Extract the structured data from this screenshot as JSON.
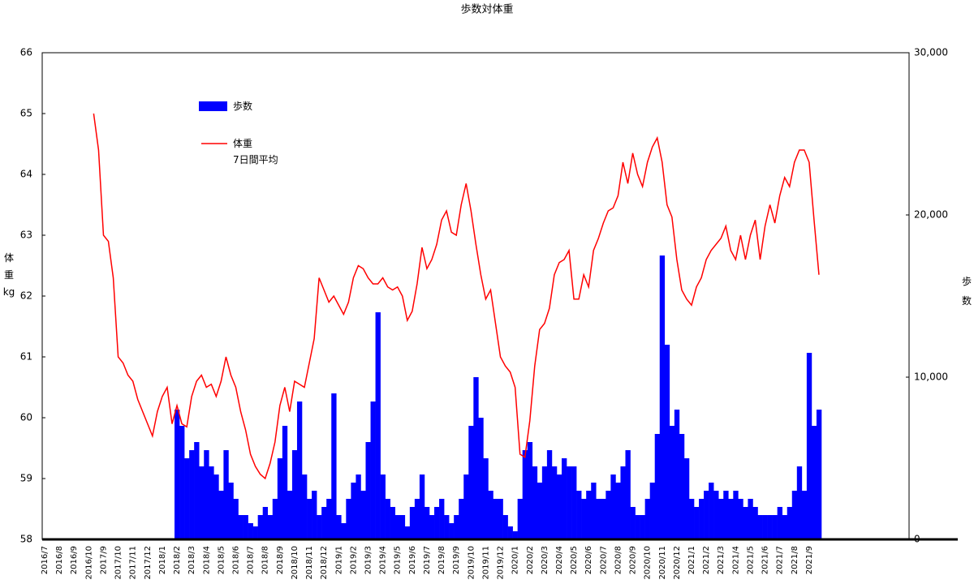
{
  "chart_data": {
    "type": "bar_line",
    "title": "歩数対体重",
    "y_label": "体\n重\nkg",
    "y2_label": "歩\n数",
    "categories": [
      "2016/7",
      null,
      null,
      "2016/8",
      null,
      null,
      "2016/9",
      null,
      null,
      "2016/10",
      null,
      null,
      "2017/9",
      null,
      null,
      "2017/10",
      null,
      null,
      "2017/11",
      null,
      null,
      "2017/12",
      null,
      null,
      "2018/1",
      null,
      null,
      "2018/2",
      null,
      null,
      "2018/3",
      null,
      null,
      "2018/4",
      null,
      null,
      "2018/5",
      null,
      null,
      "2018/6",
      null,
      null,
      "2018/7",
      null,
      null,
      "2018/8",
      null,
      null,
      "2018/9",
      null,
      null,
      "2018/10",
      null,
      null,
      "2018/11",
      null,
      null,
      "2018/12",
      null,
      null,
      "2019/1",
      null,
      null,
      "2019/2",
      null,
      null,
      "2019/3",
      null,
      null,
      "2019/4",
      null,
      null,
      "2019/5",
      null,
      null,
      "2019/6",
      null,
      null,
      "2019/7",
      null,
      null,
      "2019/8",
      null,
      null,
      "2019/9",
      null,
      null,
      "2019/10",
      null,
      null,
      "2019/11",
      null,
      null,
      "2019/12",
      null,
      null,
      "2020/1",
      null,
      null,
      "2020/2",
      null,
      null,
      "2020/3",
      null,
      null,
      "2020/4",
      null,
      null,
      "2020/5",
      null,
      null,
      "2020/6",
      null,
      null,
      "2020/7",
      null,
      null,
      "2020/8",
      null,
      null,
      "2020/9",
      null,
      null,
      "2020/10",
      null,
      null,
      "2020/11",
      null,
      null,
      "2020/12",
      null,
      null,
      "2021/1",
      null,
      null,
      "2021/2",
      null,
      null,
      "2021/3",
      null,
      null,
      "2021/4",
      null,
      null,
      "2021/5",
      null,
      null,
      "2021/6",
      null,
      null,
      "2021/7",
      null,
      null,
      "2021/8",
      null,
      null,
      "2021/9",
      null,
      null
    ],
    "series": [
      {
        "name": "歩数",
        "kind": "bar",
        "axis": "y2",
        "color": "#0000ff",
        "values": [
          null,
          null,
          null,
          null,
          null,
          null,
          null,
          null,
          null,
          null,
          null,
          null,
          null,
          null,
          null,
          null,
          null,
          null,
          null,
          null,
          null,
          null,
          null,
          null,
          null,
          null,
          null,
          8000,
          7000,
          5000,
          5500,
          6000,
          4500,
          5500,
          4500,
          4000,
          3000,
          5500,
          3500,
          2500,
          1500,
          1500,
          1000,
          800,
          1500,
          2000,
          1500,
          2500,
          5000,
          7000,
          3000,
          5500,
          8500,
          4000,
          2500,
          3000,
          1500,
          2000,
          2500,
          9000,
          1500,
          1000,
          2500,
          3500,
          4000,
          3000,
          6000,
          8500,
          14000,
          4000,
          2500,
          2000,
          1500,
          1500,
          800,
          2000,
          2500,
          4000,
          2000,
          1500,
          2000,
          2500,
          1500,
          1000,
          1500,
          2500,
          4000,
          7000,
          10000,
          7500,
          5000,
          3000,
          2500,
          2500,
          1500,
          800,
          500,
          2500,
          5500,
          6000,
          4500,
          3500,
          4500,
          5500,
          4500,
          4000,
          5000,
          4500,
          4500,
          3000,
          2500,
          3000,
          3500,
          2500,
          2500,
          3000,
          4000,
          3500,
          4500,
          5500,
          2000,
          1500,
          1500,
          2500,
          3500,
          6500,
          17500,
          12000,
          7000,
          8000,
          6500,
          5000,
          2500,
          2000,
          2500,
          3000,
          3500,
          3000,
          2500,
          3000,
          2500,
          3000,
          2500,
          2000,
          2500,
          2000,
          1500,
          1500,
          1500,
          1500,
          2000,
          1500,
          2000,
          3000,
          4500,
          3000,
          11500,
          7000,
          8000
        ]
      },
      {
        "name": "体重\n7日間平均",
        "kind": "line",
        "color": "#ff0000",
        "values": [
          null,
          null,
          null,
          null,
          null,
          null,
          null,
          null,
          null,
          null,
          65.0,
          64.4,
          63.0,
          62.9,
          62.3,
          61.0,
          60.9,
          60.7,
          60.6,
          60.3,
          60.1,
          59.9,
          59.7,
          60.1,
          60.35,
          60.5,
          59.9,
          60.2,
          59.9,
          59.85,
          60.35,
          60.6,
          60.7,
          60.5,
          60.55,
          60.35,
          60.6,
          61.0,
          60.7,
          60.5,
          60.1,
          59.8,
          59.4,
          59.2,
          59.07,
          59.0,
          59.25,
          59.6,
          60.2,
          60.5,
          60.1,
          60.6,
          60.55,
          60.5,
          60.9,
          61.3,
          62.3,
          62.1,
          61.9,
          62.0,
          61.85,
          61.7,
          61.9,
          62.3,
          62.5,
          62.45,
          62.3,
          62.2,
          62.2,
          62.3,
          62.15,
          62.1,
          62.15,
          62.0,
          61.6,
          61.75,
          62.2,
          62.8,
          62.45,
          62.6,
          62.85,
          63.25,
          63.4,
          63.05,
          63.0,
          63.5,
          63.85,
          63.4,
          62.85,
          62.35,
          61.95,
          62.1,
          61.55,
          61.0,
          60.85,
          60.75,
          60.5,
          59.4,
          59.35,
          59.95,
          60.85,
          61.45,
          61.55,
          61.8,
          62.35,
          62.55,
          62.6,
          62.75,
          61.95,
          61.95,
          62.35,
          62.15,
          62.75,
          62.95,
          63.2,
          63.4,
          63.45,
          63.65,
          64.2,
          63.85,
          64.35,
          64.0,
          63.8,
          64.2,
          64.45,
          64.6,
          64.2,
          63.5,
          63.3,
          62.6,
          62.1,
          61.95,
          61.85,
          62.15,
          62.3,
          62.6,
          62.75,
          62.85,
          62.95,
          63.15,
          62.75,
          62.6,
          63.0,
          62.6,
          63.0,
          63.25,
          62.6,
          63.15,
          63.5,
          63.2,
          63.65,
          63.95,
          63.8,
          64.2,
          64.4,
          64.4,
          64.2,
          63.25,
          62.35
        ]
      }
    ],
    "ylim": [
      58,
      66
    ],
    "yticks": [
      58,
      59,
      60,
      61,
      62,
      63,
      64,
      65,
      66
    ],
    "y2lim": [
      0,
      30000
    ],
    "y2ticks": [
      0,
      {
        "value": 10000,
        "label": "10,000"
      },
      {
        "value": 20000,
        "label": "20,000"
      },
      {
        "value": 30000,
        "label": "30,000"
      }
    ]
  }
}
